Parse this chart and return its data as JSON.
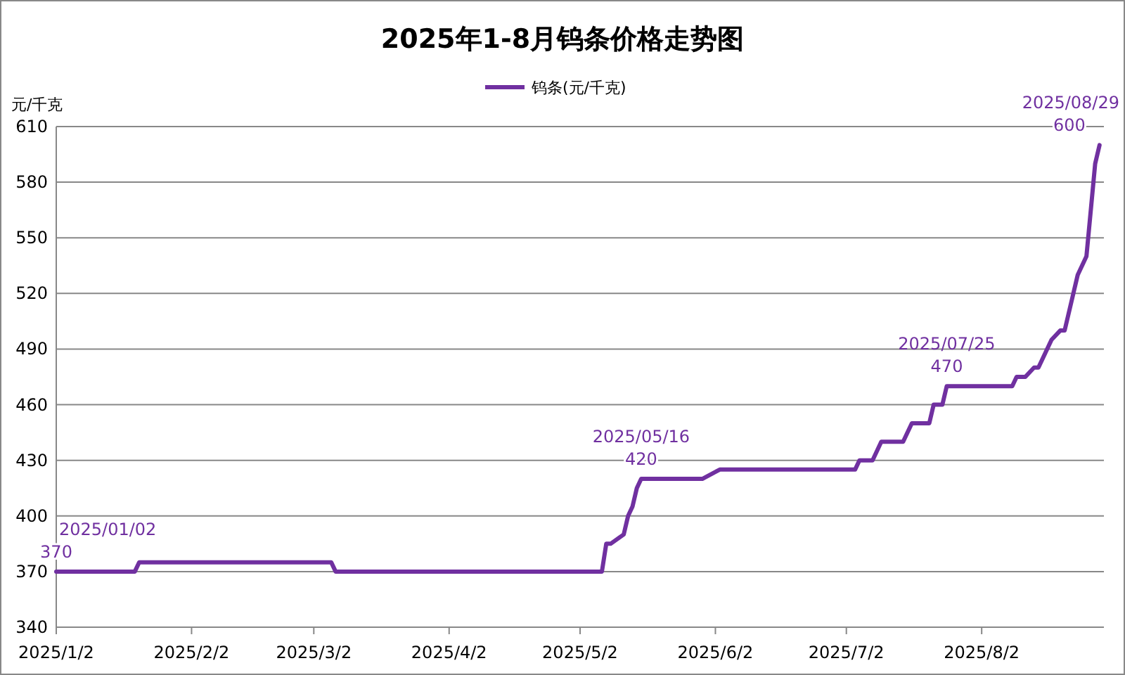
{
  "chart_data": {
    "type": "line",
    "title": "2025年1-8月钨条价格走势图",
    "ylabel": "元/千克",
    "legend": "top",
    "grid": "y",
    "marker": "none",
    "line_style": "solid",
    "xlim": [
      "2025-01-02",
      "2025-08-30"
    ],
    "xticks": [
      {
        "value": "2025-01-02",
        "label": "2025/1/2"
      },
      {
        "value": "2025-02-02",
        "label": "2025/2/2"
      },
      {
        "value": "2025-03-02",
        "label": "2025/3/2"
      },
      {
        "value": "2025-04-02",
        "label": "2025/4/2"
      },
      {
        "value": "2025-05-02",
        "label": "2025/5/2"
      },
      {
        "value": "2025-06-02",
        "label": "2025/6/2"
      },
      {
        "value": "2025-07-02",
        "label": "2025/7/2"
      },
      {
        "value": "2025-08-02",
        "label": "2025/8/2"
      }
    ],
    "ylim": [
      340,
      610
    ],
    "yticks": [
      340,
      370,
      400,
      430,
      460,
      490,
      520,
      550,
      580,
      610
    ],
    "annotations": [
      {
        "text": "2025/01/02",
        "x": "2025-01-02",
        "y": 370
      },
      {
        "text": "2025/05/16",
        "x": "2025-05-16",
        "y": 420
      },
      {
        "text": "2025/07/25",
        "x": "2025-07-25",
        "y": 470
      },
      {
        "text": "2025/08/29",
        "x": "2025-08-29",
        "y": 600
      }
    ],
    "series": [
      {
        "name": "钨条(元/千克)",
        "color": "#7030a0",
        "x": [
          "2025-01-02",
          "2025-01-20",
          "2025-01-21",
          "2025-03-06",
          "2025-03-07",
          "2025-05-07",
          "2025-05-08",
          "2025-05-09",
          "2025-05-12",
          "2025-05-13",
          "2025-05-14",
          "2025-05-15",
          "2025-05-16",
          "2025-05-30",
          "2025-06-03",
          "2025-07-04",
          "2025-07-05",
          "2025-07-08",
          "2025-07-10",
          "2025-07-15",
          "2025-07-17",
          "2025-07-21",
          "2025-07-22",
          "2025-07-24",
          "2025-07-25",
          "2025-08-09",
          "2025-08-10",
          "2025-08-12",
          "2025-08-14",
          "2025-08-15",
          "2025-08-18",
          "2025-08-20",
          "2025-08-21",
          "2025-08-23",
          "2025-08-24",
          "2025-08-26",
          "2025-08-27",
          "2025-08-28",
          "2025-08-29"
        ],
        "values": [
          370,
          370,
          375,
          375,
          370,
          370,
          385,
          385,
          390,
          400,
          405,
          415,
          420,
          420,
          425,
          425,
          430,
          430,
          440,
          440,
          450,
          450,
          460,
          460,
          470,
          470,
          475,
          475,
          480,
          480,
          495,
          500,
          500,
          520,
          530,
          540,
          565,
          590,
          600
        ],
        "value_labels": [
          "370",
          null,
          null,
          null,
          null,
          null,
          null,
          null,
          null,
          null,
          null,
          null,
          "420",
          null,
          null,
          null,
          null,
          null,
          null,
          null,
          null,
          null,
          null,
          null,
          "470",
          null,
          null,
          null,
          null,
          null,
          null,
          null,
          null,
          null,
          null,
          null,
          null,
          null,
          "600"
        ]
      }
    ]
  }
}
